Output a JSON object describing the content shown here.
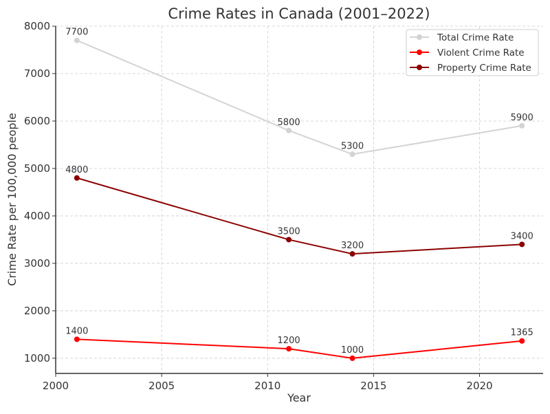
{
  "chart_data": {
    "type": "line",
    "title": "Crime Rates in Canada (2001–2022)",
    "xlabel": "Year",
    "ylabel": "Crime Rate per 100,000 people",
    "xlim": [
      2000,
      2023
    ],
    "ylim": [
      680,
      8000
    ],
    "xticks": [
      2000,
      2005,
      2010,
      2015,
      2020
    ],
    "yticks": [
      1000,
      2000,
      3000,
      4000,
      5000,
      6000,
      7000,
      8000
    ],
    "grid": true,
    "legend_position": "top-right",
    "x": [
      2001,
      2011,
      2014,
      2022
    ],
    "series": [
      {
        "name": "Total Crime Rate",
        "color": "#d3d3d3",
        "values": [
          7700,
          5800,
          5300,
          5900
        ],
        "labels": [
          "7700",
          "5800",
          "5300",
          "5900"
        ]
      },
      {
        "name": "Violent Crime Rate",
        "color": "#ff0000",
        "values": [
          1400,
          1200,
          1000,
          1365
        ],
        "labels": [
          "1400",
          "1200",
          "1000",
          "1365"
        ]
      },
      {
        "name": "Property Crime Rate",
        "color": "#8b0000",
        "values": [
          4800,
          3500,
          3200,
          3400
        ],
        "labels": [
          "4800",
          "3500",
          "3200",
          "3400"
        ]
      }
    ]
  }
}
